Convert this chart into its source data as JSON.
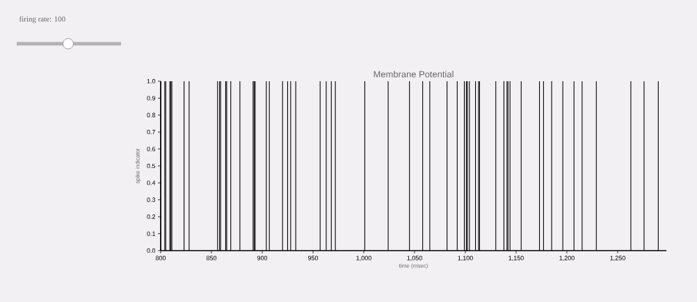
{
  "chart_data": {
    "type": "bar",
    "title": "Membrane Potential",
    "xlabel": "time (msec)",
    "ylabel": "spike indicator",
    "annotations": [
      "firing rate: 100"
    ],
    "x": [
      800,
      804,
      805,
      809,
      810,
      811,
      823,
      828,
      856,
      858,
      859,
      864,
      865,
      869,
      878,
      891,
      892,
      893,
      904,
      907,
      920,
      925,
      928,
      933,
      957,
      963,
      968,
      972,
      1001,
      1024,
      1045,
      1058,
      1065,
      1082,
      1092,
      1099,
      1101,
      1102,
      1104,
      1110,
      1113,
      1114,
      1130,
      1138,
      1141,
      1142,
      1144,
      1155,
      1173,
      1177,
      1185,
      1196,
      1207,
      1215,
      1229,
      1263,
      1276,
      1290
    ],
    "values": [
      1,
      1,
      1,
      1,
      1,
      1,
      1,
      1,
      1,
      1,
      1,
      1,
      1,
      1,
      1,
      1,
      1,
      1,
      1,
      1,
      1,
      1,
      1,
      1,
      1,
      1,
      1,
      1,
      1,
      1,
      1,
      1,
      1,
      1,
      1,
      1,
      1,
      1,
      1,
      1,
      1,
      1,
      1,
      1,
      1,
      1,
      1,
      1,
      1,
      1,
      1,
      1,
      1,
      1,
      1,
      1,
      1,
      1
    ],
    "color": "#000000",
    "xlim": [
      800,
      1298
    ],
    "xticks": [
      800,
      850,
      900,
      950,
      {
        "value": 1000,
        "label": "1,000"
      },
      {
        "value": 1050,
        "label": "1,050"
      },
      {
        "value": 1100,
        "label": "1,100"
      },
      {
        "value": 1150,
        "label": "1,150"
      },
      {
        "value": 1200,
        "label": "1,200"
      },
      {
        "value": 1250,
        "label": "1,250"
      }
    ],
    "ylim": [
      0,
      1
    ],
    "yticks": [
      {
        "value": 0,
        "label": "0.0"
      },
      0.1,
      0.2,
      0.3,
      0.4,
      0.5,
      0.6,
      0.7,
      0.8,
      0.9,
      {
        "value": 1,
        "label": "1.0"
      }
    ],
    "grid": false
  }
}
